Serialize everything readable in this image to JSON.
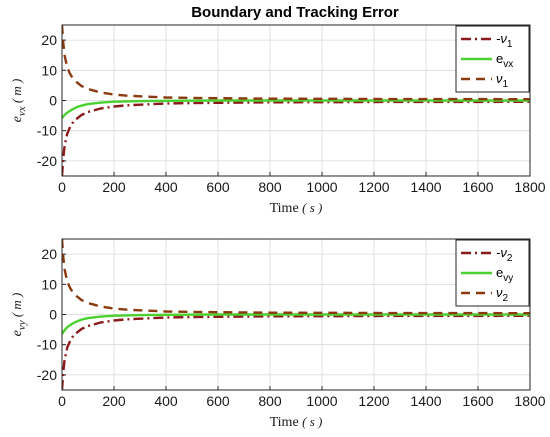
{
  "chart_data": [
    {
      "type": "line",
      "title": "Boundary and Tracking Error",
      "xlabel": "Time",
      "xunit": "( s )",
      "ylabel": "e",
      "ylabel_sub": "vx",
      "yunit": "( m )",
      "xlim": [
        0,
        1800
      ],
      "ylim": [
        -25,
        25
      ],
      "xticks": [
        0,
        200,
        400,
        600,
        800,
        1000,
        1200,
        1400,
        1600,
        1800
      ],
      "yticks": [
        -20,
        -10,
        0,
        10,
        20
      ],
      "grid": true,
      "legend_position": "top-right",
      "series": [
        {
          "name": "-ν",
          "name_sub": "1",
          "color": "#8b1a1a",
          "style": "dashdot",
          "x": [
            0,
            5,
            10,
            20,
            30,
            40,
            50,
            75,
            100,
            150,
            200,
            250,
            300,
            400,
            500,
            600,
            800,
            1000,
            1200,
            1400,
            1600,
            1800
          ],
          "y": [
            -25,
            -19,
            -15,
            -11,
            -9,
            -7.5,
            -6.5,
            -4.8,
            -3.8,
            -2.6,
            -2.0,
            -1.6,
            -1.4,
            -1.0,
            -0.85,
            -0.75,
            -0.6,
            -0.55,
            -0.5,
            -0.47,
            -0.45,
            -0.43
          ]
        },
        {
          "name": "e",
          "name_sub": "vx",
          "color": "#4bd12f",
          "style": "solid",
          "x": [
            0,
            10,
            20,
            40,
            60,
            80,
            100,
            150,
            200,
            300,
            400,
            600,
            800,
            1000,
            1200,
            1400,
            1600,
            1800
          ],
          "y": [
            -5.8,
            -4.8,
            -4.0,
            -2.9,
            -2.1,
            -1.6,
            -1.2,
            -0.7,
            -0.4,
            -0.2,
            -0.1,
            0,
            0,
            0,
            0,
            0,
            0,
            0
          ]
        },
        {
          "name": "ν",
          "name_sub": "1",
          "color": "#8b3a0f",
          "style": "dashed",
          "x": [
            0,
            5,
            10,
            20,
            30,
            40,
            50,
            75,
            100,
            150,
            200,
            250,
            300,
            400,
            500,
            600,
            800,
            1000,
            1200,
            1400,
            1600,
            1800
          ],
          "y": [
            25,
            19,
            15,
            11,
            9,
            7.5,
            6.5,
            4.8,
            3.8,
            2.6,
            2.0,
            1.6,
            1.4,
            1.0,
            0.85,
            0.75,
            0.6,
            0.55,
            0.5,
            0.47,
            0.45,
            0.43
          ]
        }
      ]
    },
    {
      "type": "line",
      "title": "",
      "xlabel": "Time",
      "xunit": "( s )",
      "ylabel": "e",
      "ylabel_sub": "vy",
      "yunit": "( m )",
      "xlim": [
        0,
        1800
      ],
      "ylim": [
        -25,
        25
      ],
      "xticks": [
        0,
        200,
        400,
        600,
        800,
        1000,
        1200,
        1400,
        1600,
        1800
      ],
      "yticks": [
        -20,
        -10,
        0,
        10,
        20
      ],
      "grid": true,
      "legend_position": "top-right",
      "series": [
        {
          "name": "-ν",
          "name_sub": "2",
          "color": "#8b1a1a",
          "style": "dashdot",
          "x": [
            0,
            5,
            10,
            20,
            30,
            40,
            50,
            75,
            100,
            150,
            200,
            250,
            300,
            400,
            500,
            600,
            800,
            1000,
            1200,
            1400,
            1600,
            1800
          ],
          "y": [
            -25,
            -19,
            -15,
            -11,
            -9,
            -7.5,
            -6.5,
            -4.8,
            -3.8,
            -2.6,
            -2.0,
            -1.6,
            -1.4,
            -1.0,
            -0.85,
            -0.75,
            -0.6,
            -0.55,
            -0.5,
            -0.47,
            -0.45,
            -0.43
          ]
        },
        {
          "name": "e",
          "name_sub": "vy",
          "color": "#4bd12f",
          "style": "solid",
          "x": [
            0,
            10,
            20,
            40,
            60,
            80,
            100,
            150,
            200,
            300,
            400,
            600,
            800,
            1000,
            1200,
            1400,
            1600,
            1800
          ],
          "y": [
            -6.5,
            -5.2,
            -4.2,
            -3.0,
            -2.2,
            -1.6,
            -1.2,
            -0.7,
            -0.4,
            -0.2,
            -0.1,
            0,
            0,
            0,
            0,
            0,
            0,
            0
          ]
        },
        {
          "name": "ν",
          "name_sub": "2",
          "color": "#8b3a0f",
          "style": "dashed",
          "x": [
            0,
            5,
            10,
            20,
            30,
            40,
            50,
            75,
            100,
            150,
            200,
            250,
            300,
            400,
            500,
            600,
            800,
            1000,
            1200,
            1400,
            1600,
            1800
          ],
          "y": [
            25,
            19,
            15,
            11,
            9,
            7.5,
            6.5,
            4.8,
            3.8,
            2.6,
            2.0,
            1.6,
            1.4,
            1.0,
            0.85,
            0.75,
            0.6,
            0.55,
            0.5,
            0.47,
            0.45,
            0.43
          ]
        }
      ]
    }
  ]
}
